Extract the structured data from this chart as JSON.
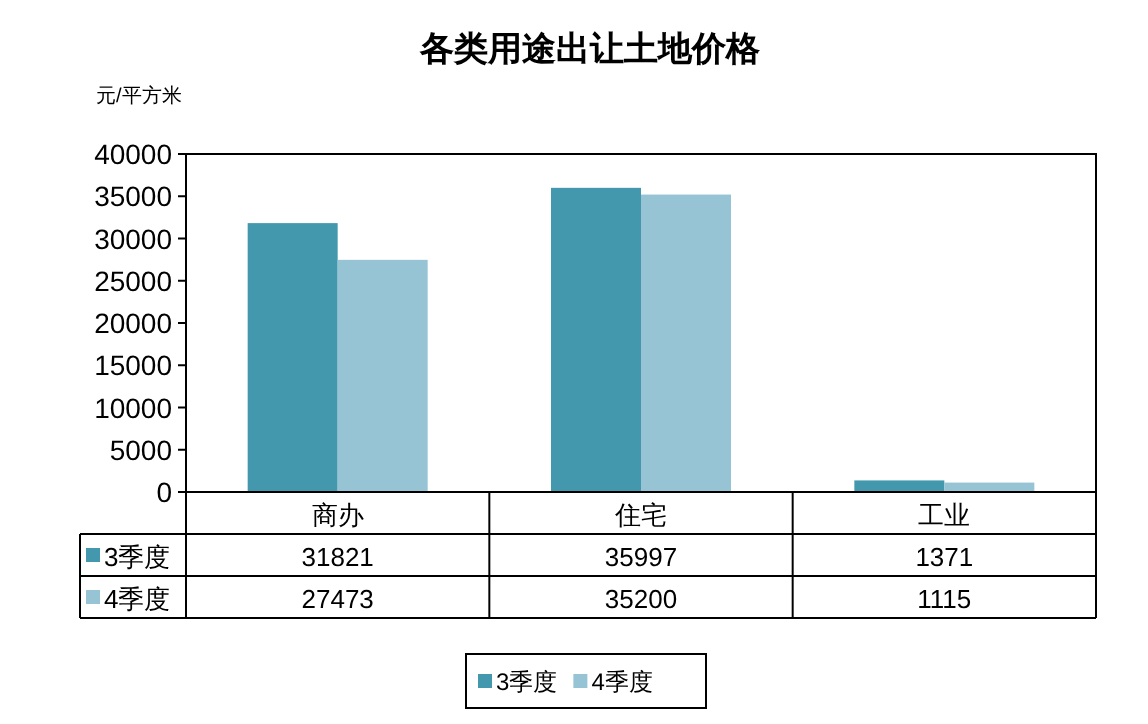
{
  "chart_data": {
    "type": "bar",
    "title": "各类用途出让土地价格",
    "ylabel": "元/平方米",
    "categories": [
      "商办",
      "住宅",
      "工业"
    ],
    "series": [
      {
        "name": "3季度",
        "color": "#4498ae",
        "values": [
          31821,
          35997,
          1371
        ]
      },
      {
        "name": "4季度",
        "color": "#96c4d5",
        "values": [
          27473,
          35200,
          1115
        ]
      }
    ],
    "ylim": [
      0,
      40000
    ],
    "yticks": [
      0,
      5000,
      10000,
      15000,
      20000,
      25000,
      30000,
      35000,
      40000
    ],
    "data_labels": true,
    "grid": false,
    "legend": "bottom"
  }
}
